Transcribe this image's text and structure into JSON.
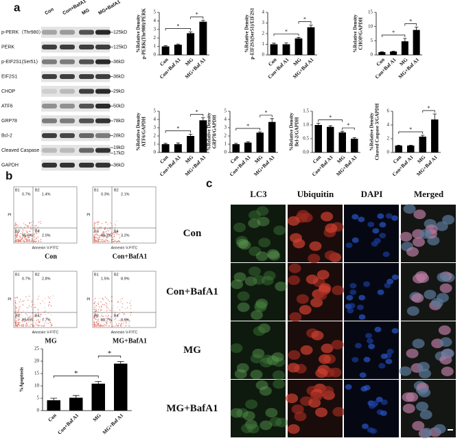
{
  "panel_labels": [
    "a",
    "b",
    "c"
  ],
  "blot": {
    "columns": [
      "Con",
      "Con+BafA1",
      "MG",
      "MG+BafA1"
    ],
    "rows": [
      {
        "label": "p-PERK（Thr980）",
        "kd": [
          "125kD"
        ]
      },
      {
        "label": "PERK",
        "kd": [
          "125kD"
        ]
      },
      {
        "label": "p-EIF2S1(Ser51)",
        "kd": [
          "36kD"
        ]
      },
      {
        "label": "EIF2S1",
        "kd": [
          "36kD"
        ]
      },
      {
        "label": "CHOP",
        "kd": [
          "29kD"
        ]
      },
      {
        "label": "ATF6",
        "kd": [
          "50kD"
        ]
      },
      {
        "label": "GRP78",
        "kd": [
          "78kD"
        ]
      },
      {
        "label": "Bcl-2",
        "kd": [
          "28kD"
        ]
      },
      {
        "label": "Cleaved Caspase 3",
        "kd": [
          "19kD",
          "17kD"
        ]
      },
      {
        "label": "GAPDH",
        "kd": [
          "36kD"
        ]
      }
    ]
  },
  "chart_data": [
    {
      "type": "bar",
      "ylabel": [
        "%Relative Density",
        "p-PERK(Thr980)/PERK"
      ],
      "categories": [
        "Con",
        "Con+Baf A1",
        "MG",
        "MG+Baf A1"
      ],
      "values": [
        1.0,
        1.2,
        2.55,
        3.9
      ],
      "errors": [
        0.1,
        0.08,
        0.15,
        0.15
      ],
      "ylim": [
        0,
        5
      ],
      "yticks": [
        0,
        1,
        2,
        3,
        4,
        5
      ],
      "color": "#000000",
      "significance": [
        {
          "pair": [
            "Con",
            "MG"
          ],
          "label": "*"
        },
        {
          "pair": [
            "MG",
            "MG+Baf A1"
          ],
          "label": "*"
        }
      ]
    },
    {
      "type": "bar",
      "ylabel": [
        "%Relative Density",
        "p-EIF2S1(Ser51)/EIF2S1"
      ],
      "categories": [
        "Con",
        "Con+Baf A1",
        "MG",
        "MG+Baf A1"
      ],
      "values": [
        1.0,
        1.0,
        1.55,
        2.6
      ],
      "errors": [
        0.1,
        0.12,
        0.1,
        0.2
      ],
      "ylim": [
        0,
        4
      ],
      "yticks": [
        0,
        1,
        2,
        3,
        4
      ],
      "color": "#000000",
      "significance": [
        {
          "pair": [
            "Con",
            "MG"
          ],
          "label": "*"
        },
        {
          "pair": [
            "MG",
            "MG+Baf A1"
          ],
          "label": "*"
        }
      ]
    },
    {
      "type": "bar",
      "ylabel": [
        "%Relative Density",
        "CHOP/GAPDH"
      ],
      "categories": [
        "Con",
        "Con+Baf A1",
        "MG",
        "MG+Baf A1"
      ],
      "values": [
        1.0,
        1.2,
        4.8,
        8.8
      ],
      "errors": [
        0.1,
        0.1,
        1.0,
        1.0
      ],
      "ylim": [
        0,
        15
      ],
      "yticks": [
        0,
        5,
        10,
        15
      ],
      "color": "#000000",
      "significance": [
        {
          "pair": [
            "Con",
            "MG"
          ],
          "label": "*"
        },
        {
          "pair": [
            "MG",
            "MG+Baf A1"
          ],
          "label": "*"
        }
      ]
    },
    {
      "type": "bar",
      "ylabel": [
        "%Relative Density",
        "ATF6/GAPDH"
      ],
      "categories": [
        "Con",
        "Con+Baf A1",
        "MG",
        "MG+Baf A1"
      ],
      "values": [
        1.0,
        1.0,
        2.0,
        3.9
      ],
      "errors": [
        0.1,
        0.15,
        0.2,
        0.3
      ],
      "ylim": [
        0,
        5
      ],
      "yticks": [
        0,
        1,
        2,
        3,
        4,
        5
      ],
      "color": "#000000",
      "significance": [
        {
          "pair": [
            "Con",
            "MG"
          ],
          "label": "*"
        },
        {
          "pair": [
            "MG",
            "MG+Baf A1"
          ],
          "label": "*"
        }
      ]
    },
    {
      "type": "bar",
      "ylabel": [
        "%Relative Density",
        "GRP78/GAPDH"
      ],
      "categories": [
        "Con",
        "Con+Baf A1",
        "MG",
        "MG+Baf A1"
      ],
      "values": [
        1.0,
        1.2,
        2.4,
        3.7
      ],
      "errors": [
        0.1,
        0.1,
        0.1,
        0.4
      ],
      "ylim": [
        0,
        5
      ],
      "yticks": [
        0,
        1,
        2,
        3,
        4,
        5
      ],
      "color": "#000000",
      "significance": [
        {
          "pair": [
            "Con",
            "MG"
          ],
          "label": "*"
        },
        {
          "pair": [
            "MG",
            "MG+Baf A1"
          ],
          "label": "*"
        }
      ]
    },
    {
      "type": "bar",
      "ylabel": [
        "%Relative Density",
        "Bcl-2/GAPDH"
      ],
      "categories": [
        "Con",
        "Con+Baf A1",
        "MG",
        "MG+Baf A1"
      ],
      "values": [
        1.0,
        0.93,
        0.73,
        0.5
      ],
      "errors": [
        0.06,
        0.04,
        0.04,
        0.04
      ],
      "ylim": [
        0,
        1.5
      ],
      "yticks": [
        {
          "value": 0,
          "label": "0.0"
        },
        0.5,
        {
          "value": 1,
          "label": "1.0"
        },
        1.5
      ],
      "color": "#000000",
      "significance": [
        {
          "pair": [
            "Con",
            "MG"
          ],
          "label": "*"
        },
        {
          "pair": [
            "MG",
            "MG+Baf A1"
          ],
          "label": "*"
        }
      ]
    },
    {
      "type": "bar",
      "ylabel": [
        "%Relative Density",
        "Cleaved Caspase 3/GAPDH"
      ],
      "categories": [
        "Con",
        "Con+Baf A1",
        "MG",
        "MG+Baf A1"
      ],
      "values": [
        1.0,
        1.0,
        2.3,
        4.8
      ],
      "errors": [
        0.05,
        0.05,
        0.2,
        0.8
      ],
      "ylim": [
        0,
        6
      ],
      "yticks": [
        0,
        2,
        4,
        6
      ],
      "color": "#000000",
      "significance": [
        {
          "pair": [
            "Con",
            "MG"
          ],
          "label": "*"
        },
        {
          "pair": [
            "MG",
            "MG+Baf A1"
          ],
          "label": "*"
        }
      ]
    },
    {
      "type": "bar",
      "ylabel": [
        "%Apoptosis"
      ],
      "categories": [
        "Con",
        "Con+Baf A1",
        "MG",
        "MG+Baf A1"
      ],
      "values": [
        4.2,
        5.2,
        10.9,
        19.0
      ],
      "errors": [
        0.8,
        0.9,
        0.9,
        0.9
      ],
      "ylim": [
        0,
        25
      ],
      "yticks": [
        0,
        5,
        10,
        15,
        20,
        25
      ],
      "color": "#000000",
      "significance": [
        {
          "pair": [
            "Con",
            "MG"
          ],
          "label": "*"
        },
        {
          "pair": [
            "MG",
            "MG+Baf A1"
          ],
          "label": "*"
        }
      ]
    }
  ],
  "flow": {
    "xlabel": "Annexin V-FITC",
    "ylabel": "PI",
    "plots": [
      {
        "caption": "Con",
        "quadrants": [
          {
            "name": "B1",
            "value": "0.7%"
          },
          {
            "name": "B2",
            "value": "1.4%"
          },
          {
            "name": "B3",
            "value": "95.9%"
          },
          {
            "name": "B4",
            "value": "2.0%"
          }
        ]
      },
      {
        "caption": "Con+BafA1",
        "quadrants": [
          {
            "name": "B1",
            "value": "0.3%"
          },
          {
            "name": "B2",
            "value": "2.1%"
          },
          {
            "name": "B3",
            "value": "94.3%"
          },
          {
            "name": "B4",
            "value": "3.2%"
          }
        ]
      },
      {
        "caption": "MG",
        "quadrants": [
          {
            "name": "B1",
            "value": "0.7%"
          },
          {
            "name": "B2",
            "value": "2.8%"
          },
          {
            "name": "B3",
            "value": "89.6%"
          },
          {
            "name": "B4",
            "value": "7.7%"
          }
        ]
      },
      {
        "caption": "MG+BafA1",
        "quadrants": [
          {
            "name": "B1",
            "value": "1.5%"
          },
          {
            "name": "B2",
            "value": "8.9%"
          },
          {
            "name": "B3",
            "value": "89.7%"
          },
          {
            "name": "B4",
            "value": "8.9%"
          }
        ]
      }
    ]
  },
  "images": {
    "columns": [
      "LC3",
      "Ubiquitin",
      "DAPI",
      "Merged"
    ],
    "rows": [
      "Con",
      "Con+BafA1",
      "MG",
      "MG+BafA1"
    ]
  }
}
